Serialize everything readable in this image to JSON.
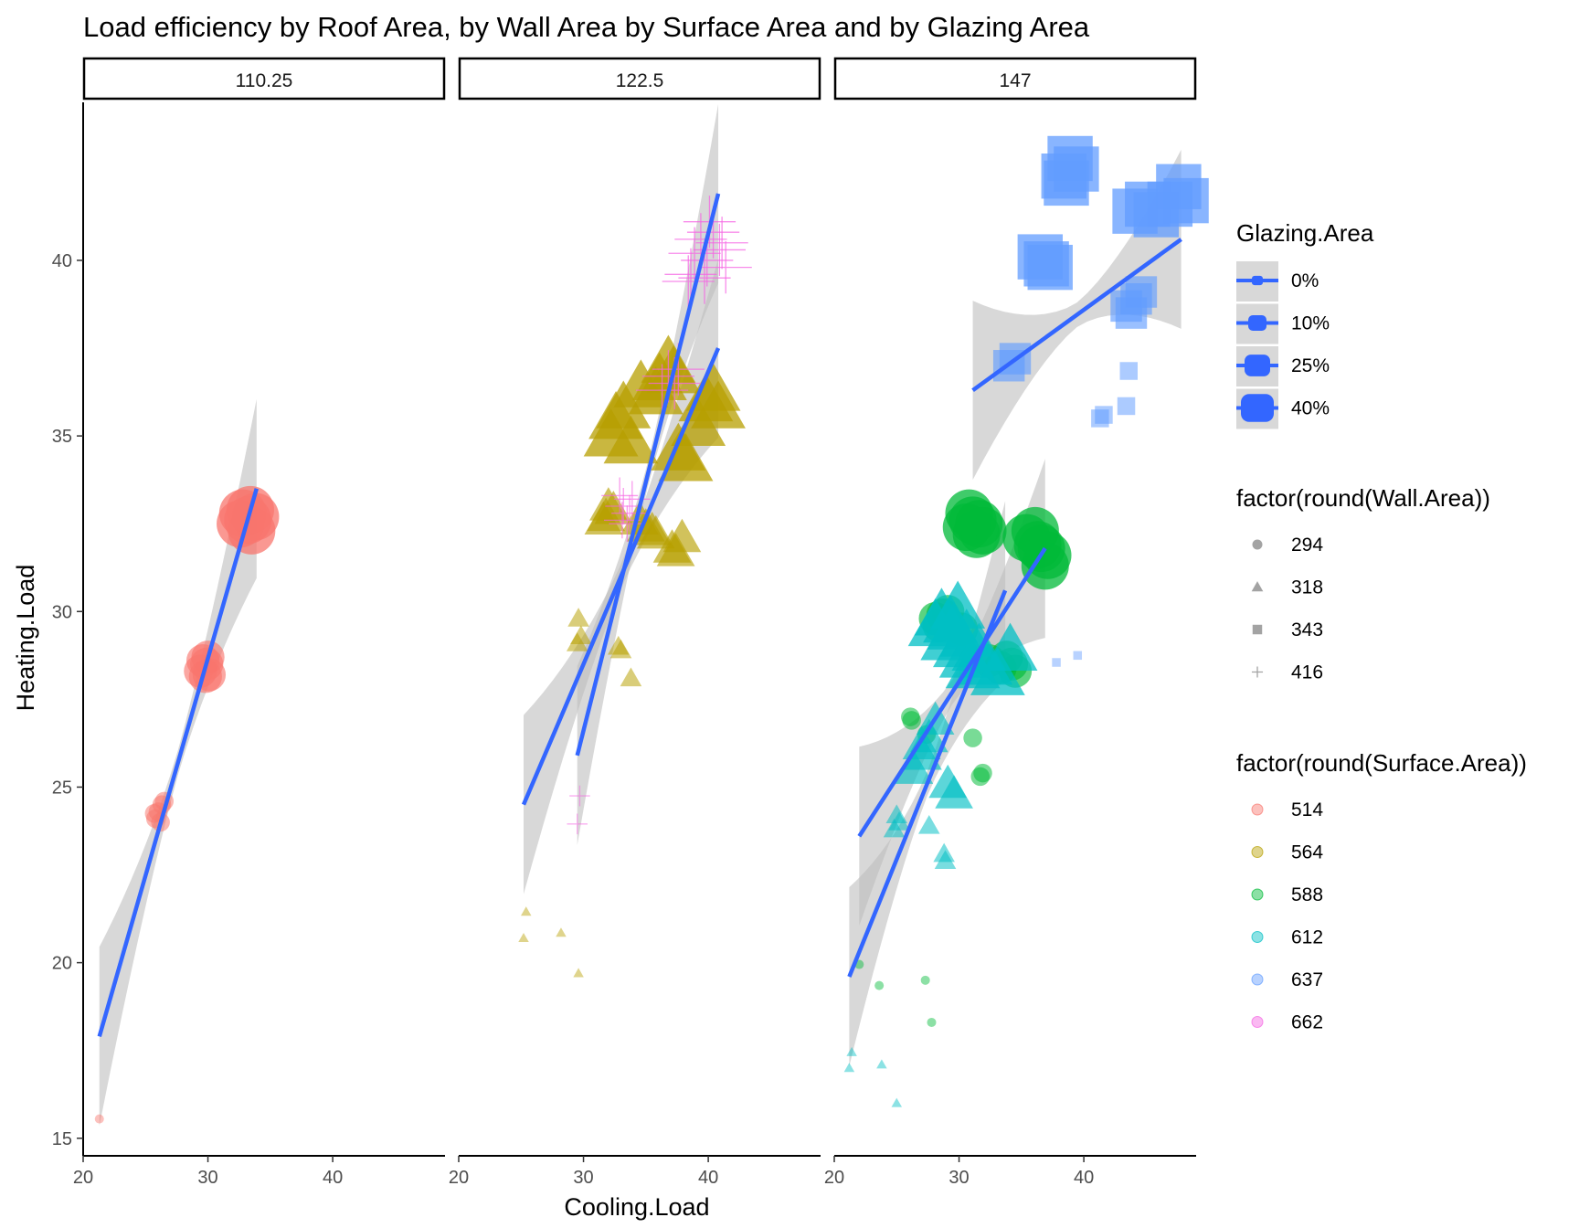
{
  "chart_data": {
    "type": "scatter",
    "title": "Load efficiency by Roof Area, by Wall Area by Surface Area and by Glazing Area",
    "xlabel": "Cooling.Load",
    "ylabel": "Heating.Load",
    "facets": [
      "110.25",
      "122.5",
      "147"
    ],
    "xlim": [
      20,
      49
    ],
    "ylim": [
      14.5,
      44.5
    ],
    "xticks": [
      20,
      30,
      40
    ],
    "yticks": [
      15,
      20,
      25,
      30,
      35,
      40
    ],
    "grid": false,
    "legend_position": "right",
    "smooth_color": "#3366FF",
    "ribbon_color": "#BEBEBE",
    "legends": [
      {
        "title": "Glazing.Area",
        "aesthetic": "size",
        "entries": [
          "0%",
          "10%",
          "25%",
          "40%"
        ],
        "sizes": [
          0,
          10,
          25,
          40
        ]
      },
      {
        "title": "factor(round(Wall.Area))",
        "aesthetic": "shape",
        "entries": [
          "294",
          "318",
          "343",
          "416"
        ],
        "shapes": [
          "circle",
          "triangle",
          "square",
          "plus"
        ]
      },
      {
        "title": "factor(round(Surface.Area))",
        "aesthetic": "color",
        "entries": [
          "514",
          "564",
          "588",
          "612",
          "637",
          "662"
        ],
        "colors": [
          "#F8766D",
          "#B79F00",
          "#00BA38",
          "#00BFC4",
          "#619CFF",
          "#F564E3"
        ]
      }
    ],
    "series": [
      {
        "facet": 0,
        "surface": 0,
        "wall": 0,
        "glazing": 0,
        "points": [
          [
            21.3,
            15.55
          ]
        ]
      },
      {
        "facet": 0,
        "surface": 0,
        "wall": 0,
        "glazing": 10,
        "points": [
          [
            26.0,
            24.3
          ],
          [
            26.3,
            24.5
          ],
          [
            25.8,
            24.1
          ],
          [
            26.5,
            24.6
          ],
          [
            25.7,
            24.25
          ],
          [
            26.2,
            24.0
          ]
        ]
      },
      {
        "facet": 0,
        "surface": 0,
        "wall": 0,
        "glazing": 25,
        "points": [
          [
            29.6,
            28.6
          ],
          [
            30.1,
            28.2
          ],
          [
            29.9,
            28.5
          ],
          [
            29.4,
            28.3
          ],
          [
            30.0,
            28.7
          ],
          [
            29.8,
            28.15
          ]
        ]
      },
      {
        "facet": 0,
        "surface": 0,
        "wall": 0,
        "glazing": 40,
        "points": [
          [
            32.8,
            32.8
          ],
          [
            33.5,
            32.3
          ],
          [
            33.2,
            32.6
          ],
          [
            33.8,
            32.7
          ],
          [
            32.6,
            32.5
          ],
          [
            33.4,
            32.9
          ]
        ]
      },
      {
        "facet": 0,
        "surface": 0,
        "wall": 0,
        "smooth": true,
        "line": [
          [
            21.3,
            17.9
          ],
          [
            33.9,
            33.5
          ]
        ]
      },
      {
        "facet": 1,
        "surface": 1,
        "wall": 1,
        "glazing": 0,
        "points": [
          [
            25.2,
            20.7
          ],
          [
            25.4,
            21.45
          ],
          [
            28.2,
            20.85
          ],
          [
            29.6,
            19.7
          ]
        ]
      },
      {
        "facet": 1,
        "surface": 1,
        "wall": 1,
        "glazing": 10,
        "points": [
          [
            29.6,
            29.8
          ],
          [
            29.5,
            29.1
          ],
          [
            32.8,
            29.0
          ],
          [
            33.8,
            28.1
          ],
          [
            29.8,
            29.3
          ],
          [
            33.0,
            28.9
          ]
        ]
      },
      {
        "facet": 1,
        "surface": 1,
        "wall": 1,
        "glazing": 25,
        "points": [
          [
            32.0,
            33.0
          ],
          [
            31.6,
            32.6
          ],
          [
            32.4,
            32.9
          ],
          [
            31.8,
            32.7
          ],
          [
            35.0,
            32.4
          ],
          [
            35.8,
            32.2
          ],
          [
            34.5,
            32.6
          ],
          [
            37.4,
            31.7
          ],
          [
            37.9,
            32.1
          ],
          [
            37.1,
            31.8
          ],
          [
            35.5,
            32.3
          ]
        ]
      },
      {
        "facet": 1,
        "surface": 1,
        "wall": 1,
        "glazing": 40,
        "points": [
          [
            32.2,
            35.0
          ],
          [
            32.6,
            35.5
          ],
          [
            33.2,
            35.8
          ],
          [
            34.6,
            36.4
          ],
          [
            36.1,
            36.6
          ],
          [
            36.8,
            37.1
          ],
          [
            37.6,
            34.6
          ],
          [
            38.2,
            34.3
          ],
          [
            39.2,
            35.3
          ],
          [
            39.8,
            36.0
          ],
          [
            40.4,
            36.3
          ],
          [
            40.8,
            35.8
          ],
          [
            37.2,
            36.8
          ],
          [
            35.8,
            36.2
          ],
          [
            33.8,
            34.8
          ]
        ]
      },
      {
        "facet": 1,
        "surface": 5,
        "wall": 3,
        "glazing": 10,
        "points": [
          [
            29.7,
            24.75
          ],
          [
            29.5,
            23.95
          ]
        ]
      },
      {
        "facet": 1,
        "surface": 5,
        "wall": 3,
        "glazing": 25,
        "points": [
          [
            33.2,
            33.0
          ],
          [
            33.7,
            32.8
          ],
          [
            32.9,
            33.3
          ],
          [
            33.5,
            32.5
          ],
          [
            33.9,
            33.2
          ],
          [
            33.1,
            32.6
          ]
        ]
      },
      {
        "facet": 1,
        "surface": 5,
        "wall": 3,
        "glazing": 40,
        "points": [
          [
            36.8,
            36.7
          ],
          [
            37.3,
            36.5
          ],
          [
            36.3,
            36.3
          ],
          [
            37.6,
            36.9
          ],
          [
            38.4,
            39.4
          ],
          [
            38.9,
            40.2
          ],
          [
            39.4,
            40.6
          ],
          [
            39.9,
            40.0
          ],
          [
            40.4,
            40.8
          ],
          [
            40.9,
            40.3
          ],
          [
            41.4,
            39.8
          ],
          [
            38.6,
            39.6
          ],
          [
            40.1,
            41.1
          ],
          [
            39.7,
            39.5
          ],
          [
            41.1,
            40.5
          ]
        ]
      },
      {
        "facet": 1,
        "surface": 1,
        "wall": 1,
        "smooth": true,
        "line": [
          [
            25.2,
            24.5
          ],
          [
            40.8,
            37.5
          ]
        ]
      },
      {
        "facet": 1,
        "surface": 5,
        "wall": 3,
        "smooth": true,
        "line": [
          [
            29.5,
            25.9
          ],
          [
            40.8,
            41.9
          ]
        ]
      },
      {
        "facet": 2,
        "surface": 2,
        "wall": 0,
        "glazing": 0,
        "points": [
          [
            22.0,
            19.95
          ],
          [
            23.6,
            19.35
          ],
          [
            27.3,
            19.5
          ],
          [
            27.8,
            18.3
          ]
        ]
      },
      {
        "facet": 2,
        "surface": 2,
        "wall": 0,
        "glazing": 10,
        "points": [
          [
            26.1,
            27.0
          ],
          [
            27.4,
            26.5
          ],
          [
            31.1,
            26.4
          ],
          [
            31.9,
            25.4
          ],
          [
            31.7,
            25.3
          ],
          [
            26.2,
            26.9
          ]
        ]
      },
      {
        "facet": 2,
        "surface": 2,
        "wall": 0,
        "glazing": 25,
        "points": [
          [
            28.1,
            29.8
          ],
          [
            28.7,
            29.9
          ],
          [
            30.2,
            29.5
          ],
          [
            32.4,
            28.6
          ],
          [
            33.3,
            28.4
          ],
          [
            34.2,
            28.5
          ],
          [
            34.5,
            28.3
          ],
          [
            28.4,
            29.6
          ],
          [
            33.8,
            28.7
          ],
          [
            29.1,
            30.0
          ]
        ]
      },
      {
        "facet": 2,
        "surface": 2,
        "wall": 0,
        "glazing": 40,
        "points": [
          [
            30.6,
            32.4
          ],
          [
            31.1,
            32.6
          ],
          [
            31.4,
            32.2
          ],
          [
            31.9,
            32.3
          ],
          [
            35.4,
            32.1
          ],
          [
            36.1,
            32.3
          ],
          [
            36.6,
            31.8
          ],
          [
            36.9,
            31.3
          ],
          [
            37.1,
            31.6
          ],
          [
            30.8,
            32.8
          ],
          [
            36.3,
            31.9
          ],
          [
            31.6,
            32.5
          ]
        ]
      },
      {
        "facet": 2,
        "surface": 3,
        "wall": 1,
        "glazing": 0,
        "points": [
          [
            21.2,
            17.0
          ],
          [
            21.4,
            17.45
          ],
          [
            23.8,
            17.1
          ],
          [
            25.0,
            16.0
          ]
        ]
      },
      {
        "facet": 2,
        "surface": 3,
        "wall": 1,
        "glazing": 10,
        "points": [
          [
            25.0,
            24.2
          ],
          [
            24.8,
            23.8
          ],
          [
            27.6,
            23.9
          ],
          [
            28.9,
            22.9
          ],
          [
            28.8,
            23.1
          ],
          [
            25.2,
            24.0
          ]
        ]
      },
      {
        "facet": 2,
        "surface": 3,
        "wall": 1,
        "glazing": 25,
        "points": [
          [
            26.4,
            25.5
          ],
          [
            27.1,
            25.9
          ],
          [
            27.6,
            26.4
          ],
          [
            28.1,
            26.9
          ],
          [
            29.1,
            25.1
          ],
          [
            29.6,
            24.8
          ],
          [
            27.0,
            26.2
          ]
        ]
      },
      {
        "facet": 2,
        "surface": 3,
        "wall": 1,
        "glazing": 40,
        "points": [
          [
            28.1,
            29.6
          ],
          [
            28.6,
            29.9
          ],
          [
            29.1,
            29.2
          ],
          [
            29.6,
            29.5
          ],
          [
            30.1,
            29.0
          ],
          [
            30.6,
            28.7
          ],
          [
            31.1,
            28.4
          ],
          [
            31.6,
            28.9
          ],
          [
            32.1,
            28.5
          ],
          [
            33.1,
            28.2
          ],
          [
            34.1,
            28.9
          ],
          [
            29.9,
            30.1
          ],
          [
            29.3,
            29.7
          ],
          [
            30.6,
            29.3
          ]
        ]
      },
      {
        "facet": 2,
        "surface": 4,
        "wall": 2,
        "glazing": 0,
        "points": [
          [
            37.8,
            28.55
          ],
          [
            39.5,
            28.75
          ]
        ]
      },
      {
        "facet": 2,
        "surface": 4,
        "wall": 2,
        "glazing": 10,
        "points": [
          [
            41.3,
            35.5
          ],
          [
            41.6,
            35.6
          ],
          [
            43.4,
            35.85
          ],
          [
            43.6,
            36.85
          ]
        ]
      },
      {
        "facet": 2,
        "surface": 4,
        "wall": 2,
        "glazing": 25,
        "points": [
          [
            34.0,
            37.0
          ],
          [
            34.5,
            37.2
          ],
          [
            43.4,
            38.7
          ],
          [
            44.2,
            38.9
          ],
          [
            44.6,
            39.1
          ],
          [
            43.8,
            38.5
          ]
        ]
      },
      {
        "facet": 2,
        "surface": 4,
        "wall": 2,
        "glazing": 40,
        "points": [
          [
            37.0,
            39.9
          ],
          [
            36.5,
            40.1
          ],
          [
            37.3,
            39.8
          ],
          [
            38.4,
            42.4
          ],
          [
            38.9,
            42.9
          ],
          [
            39.4,
            42.6
          ],
          [
            38.6,
            42.2
          ],
          [
            44.1,
            41.4
          ],
          [
            45.1,
            41.6
          ],
          [
            45.8,
            41.3
          ],
          [
            46.9,
            41.6
          ],
          [
            47.6,
            42.1
          ],
          [
            48.2,
            41.7
          ]
        ]
      },
      {
        "facet": 2,
        "surface": 2,
        "wall": 0,
        "smooth": true,
        "line": [
          [
            22.0,
            23.6
          ],
          [
            36.9,
            31.8
          ]
        ]
      },
      {
        "facet": 2,
        "surface": 3,
        "wall": 1,
        "smooth": true,
        "line": [
          [
            21.2,
            19.6
          ],
          [
            33.7,
            30.6
          ]
        ]
      },
      {
        "facet": 2,
        "surface": 4,
        "wall": 2,
        "smooth": true,
        "line": [
          [
            31.1,
            36.3
          ],
          [
            47.8,
            40.6
          ]
        ]
      }
    ]
  }
}
